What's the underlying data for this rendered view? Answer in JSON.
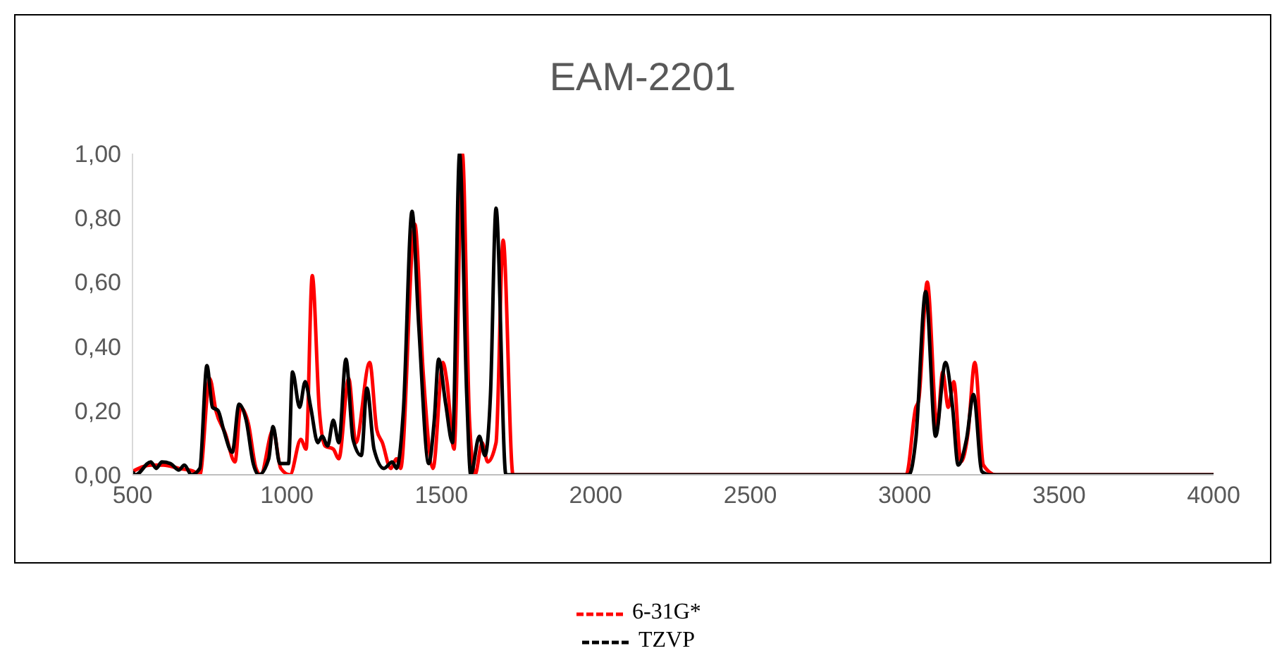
{
  "chart_data": {
    "type": "line",
    "title": "EAM-2201",
    "xlim": [
      500,
      4000
    ],
    "xticks": [
      500,
      1000,
      1500,
      2000,
      2500,
      3000,
      3500,
      4000
    ],
    "ylim": [
      0,
      1
    ],
    "yticks": [
      {
        "value": 0,
        "label": "0,00"
      },
      {
        "value": 0.2,
        "label": "0,20"
      },
      {
        "value": 0.4,
        "label": "0,40"
      },
      {
        "value": 0.6,
        "label": "0,60"
      },
      {
        "value": 0.8,
        "label": "0,80"
      },
      {
        "value": 1,
        "label": "1,00"
      }
    ],
    "legend": "bottom",
    "marker": "none",
    "line_style": "solid",
    "series": [
      {
        "name": "6-31G*",
        "color": "#ff0000",
        "x": [
          500,
          559,
          600,
          650,
          700,
          718,
          750,
          770,
          800,
          832,
          850,
          875,
          900,
          915,
          955,
          980,
          1010,
          1045,
          1062,
          1082,
          1105,
          1123,
          1150,
          1168,
          1200,
          1223,
          1268,
          1291,
          1309,
          1336,
          1355,
          1368,
          1414,
          1441,
          1473,
          1505,
          1518,
          1541,
          1568,
          1591,
          1609,
          1632,
          1650,
          1677,
          1700,
          1732,
          3005,
          3036,
          3045,
          3073,
          3105,
          3123,
          3141,
          3159,
          3182,
          3205,
          3227,
          3255,
          3295,
          4000
        ],
        "values": [
          0.01,
          0.03,
          0.03,
          0.02,
          0.01,
          0,
          0.3,
          0.2,
          0.13,
          0.04,
          0.21,
          0.16,
          0.02,
          0,
          0.14,
          0.02,
          0,
          0.11,
          0.08,
          0.62,
          0.2,
          0.09,
          0.08,
          0.05,
          0.3,
          0.1,
          0.35,
          0.14,
          0.1,
          0.02,
          0.05,
          0.02,
          0.78,
          0.32,
          0.02,
          0.35,
          0.29,
          0.08,
          1,
          0.17,
          0,
          0.1,
          0.04,
          0.1,
          0.73,
          0,
          0,
          0.21,
          0.23,
          0.6,
          0.15,
          0.32,
          0.21,
          0.29,
          0.04,
          0.13,
          0.35,
          0.03,
          0,
          0
        ]
      },
      {
        "name": "TZVP",
        "color": "#000000",
        "x": [
          500,
          510,
          559,
          577,
          595,
          623,
          650,
          668,
          691,
          718,
          741,
          759,
          777,
          795,
          823,
          845,
          868,
          891,
          909,
          941,
          955,
          977,
          1005,
          1018,
          1041,
          1059,
          1077,
          1100,
          1114,
          1132,
          1150,
          1168,
          1191,
          1214,
          1241,
          1259,
          1282,
          1314,
          1341,
          1355,
          1377,
          1405,
          1427,
          1459,
          1477,
          1491,
          1514,
          1536,
          1559,
          1582,
          1595,
          1623,
          1641,
          1659,
          1677,
          1709,
          3014,
          3036,
          3068,
          3100,
          3132,
          3155,
          3173,
          3200,
          3223,
          3250,
          3277,
          4000
        ],
        "values": [
          0.01,
          0,
          0.04,
          0.02,
          0.04,
          0.035,
          0.015,
          0.03,
          0,
          0.02,
          0.34,
          0.21,
          0.2,
          0.14,
          0.07,
          0.22,
          0.17,
          0.035,
          0,
          0.05,
          0.15,
          0.035,
          0.035,
          0.32,
          0.21,
          0.29,
          0.21,
          0.1,
          0.12,
          0.09,
          0.17,
          0.1,
          0.36,
          0.11,
          0.06,
          0.27,
          0.08,
          0.02,
          0.04,
          0.02,
          0.2,
          0.82,
          0.46,
          0.035,
          0.17,
          0.36,
          0.22,
          0.1,
          1,
          0.25,
          0,
          0.12,
          0.06,
          0.25,
          0.83,
          0,
          0,
          0.11,
          0.57,
          0.12,
          0.35,
          0.21,
          0.03,
          0.11,
          0.25,
          0.01,
          0,
          0
        ]
      }
    ]
  }
}
